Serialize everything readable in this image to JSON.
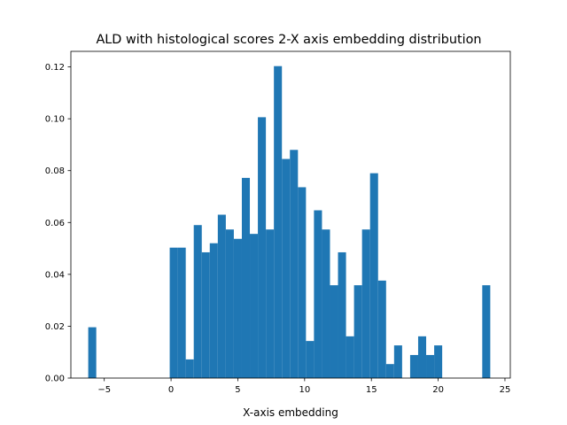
{
  "chart_data": {
    "type": "bar",
    "title": "ALD with histological scores 2-X axis embedding distribution",
    "xlabel": "X-axis embedding",
    "ylabel": "",
    "xlim": [
      -7.5,
      25.4
    ],
    "ylim": [
      0,
      0.126
    ],
    "bar_color": "#1f77b4",
    "grid": false,
    "xticks": [
      -5,
      0,
      5,
      10,
      15,
      20,
      25
    ],
    "yticks": [
      0.0,
      0.02,
      0.04,
      0.06,
      0.08,
      0.1,
      0.12
    ],
    "xtick_labels": [
      "−5",
      "0",
      "5",
      "10",
      "15",
      "20",
      "25"
    ],
    "ytick_labels": [
      "0.00",
      "0.02",
      "0.04",
      "0.06",
      "0.08",
      "0.10",
      "0.12"
    ],
    "bin_width": 0.6,
    "bins": [
      {
        "x": -6.2,
        "y": 0.0196
      },
      {
        "x": -0.1,
        "y": 0.0503
      },
      {
        "x": 0.5,
        "y": 0.0503
      },
      {
        "x": 1.1,
        "y": 0.0072
      },
      {
        "x": 1.7,
        "y": 0.059
      },
      {
        "x": 2.3,
        "y": 0.0485
      },
      {
        "x": 2.9,
        "y": 0.052
      },
      {
        "x": 3.5,
        "y": 0.063
      },
      {
        "x": 4.1,
        "y": 0.0573
      },
      {
        "x": 4.7,
        "y": 0.0537
      },
      {
        "x": 5.3,
        "y": 0.0772
      },
      {
        "x": 5.9,
        "y": 0.0556
      },
      {
        "x": 6.5,
        "y": 0.1006
      },
      {
        "x": 7.1,
        "y": 0.0573
      },
      {
        "x": 7.7,
        "y": 0.1203
      },
      {
        "x": 8.3,
        "y": 0.0845
      },
      {
        "x": 8.9,
        "y": 0.088
      },
      {
        "x": 9.5,
        "y": 0.0736
      },
      {
        "x": 10.1,
        "y": 0.0143
      },
      {
        "x": 10.7,
        "y": 0.0647
      },
      {
        "x": 11.3,
        "y": 0.0573
      },
      {
        "x": 11.9,
        "y": 0.0358
      },
      {
        "x": 12.5,
        "y": 0.0485
      },
      {
        "x": 13.1,
        "y": 0.0161
      },
      {
        "x": 13.7,
        "y": 0.0358
      },
      {
        "x": 14.3,
        "y": 0.0573
      },
      {
        "x": 14.9,
        "y": 0.079
      },
      {
        "x": 15.5,
        "y": 0.0376
      },
      {
        "x": 16.1,
        "y": 0.0054
      },
      {
        "x": 16.7,
        "y": 0.0126
      },
      {
        "x": 17.9,
        "y": 0.0089
      },
      {
        "x": 18.5,
        "y": 0.0161
      },
      {
        "x": 19.1,
        "y": 0.0089
      },
      {
        "x": 19.7,
        "y": 0.0126
      },
      {
        "x": 23.3,
        "y": 0.0358
      }
    ]
  }
}
